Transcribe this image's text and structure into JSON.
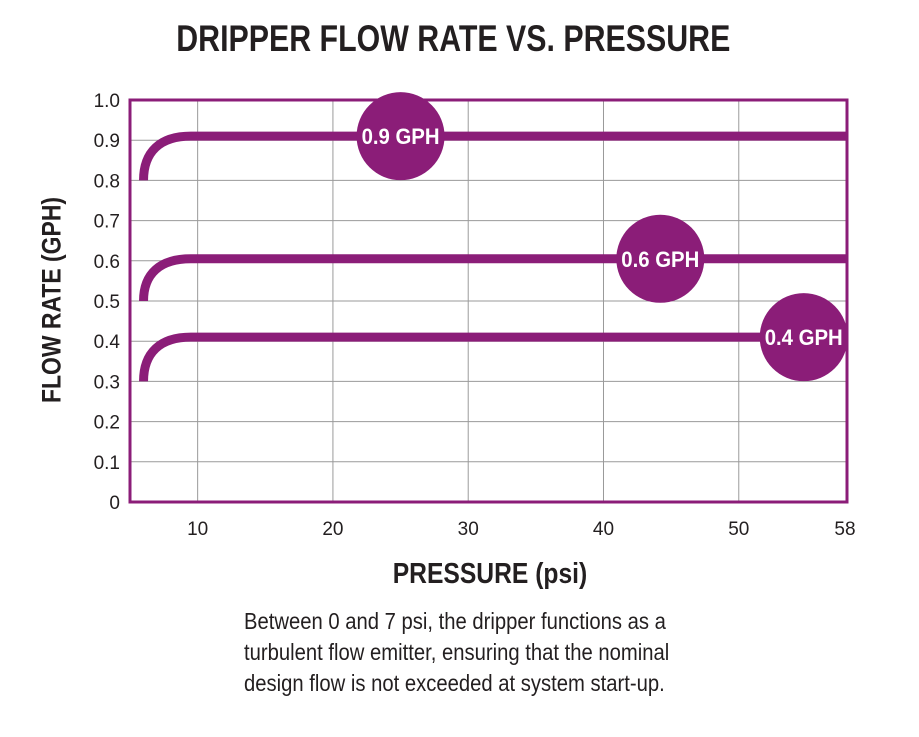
{
  "chart_data": {
    "type": "line",
    "title": "DRIPPER FLOW RATE VS. PRESSURE",
    "xlabel": "PRESSURE (psi)",
    "ylabel": "FLOW RATE (GPH)",
    "xlim": [
      5,
      58
    ],
    "ylim": [
      0,
      1.0
    ],
    "x_ticks": [
      "10",
      "20",
      "30",
      "40",
      "50",
      "58"
    ],
    "y_ticks": [
      "0",
      "0.1",
      "0.2",
      "0.3",
      "0.4",
      "0.5",
      "0.6",
      "0.7",
      "0.8",
      "0.9",
      "1.0"
    ],
    "series": [
      {
        "name": "0.9 GPH",
        "label": "0.9 GPH",
        "start": [
          6,
          0.8
        ],
        "plateau": 0.91,
        "plateau_from": 9.5,
        "end_x": 58,
        "label_x": 25
      },
      {
        "name": "0.6 GPH",
        "label": "0.6 GPH",
        "start": [
          6,
          0.5
        ],
        "plateau": 0.605,
        "plateau_from": 9.5,
        "end_x": 58,
        "label_x": 44.2
      },
      {
        "name": "0.4 GPH",
        "label": "0.4 GPH",
        "start": [
          6,
          0.3
        ],
        "plateau": 0.41,
        "plateau_from": 9.5,
        "end_x": 58,
        "label_x": 54.8
      }
    ],
    "grid": true,
    "color": "#8b1d78"
  },
  "caption": "Between 0 and 7 psi, the dripper functions as a turbulent flow emitter, ensuring that the nominal design flow is not exceeded at system start-up."
}
